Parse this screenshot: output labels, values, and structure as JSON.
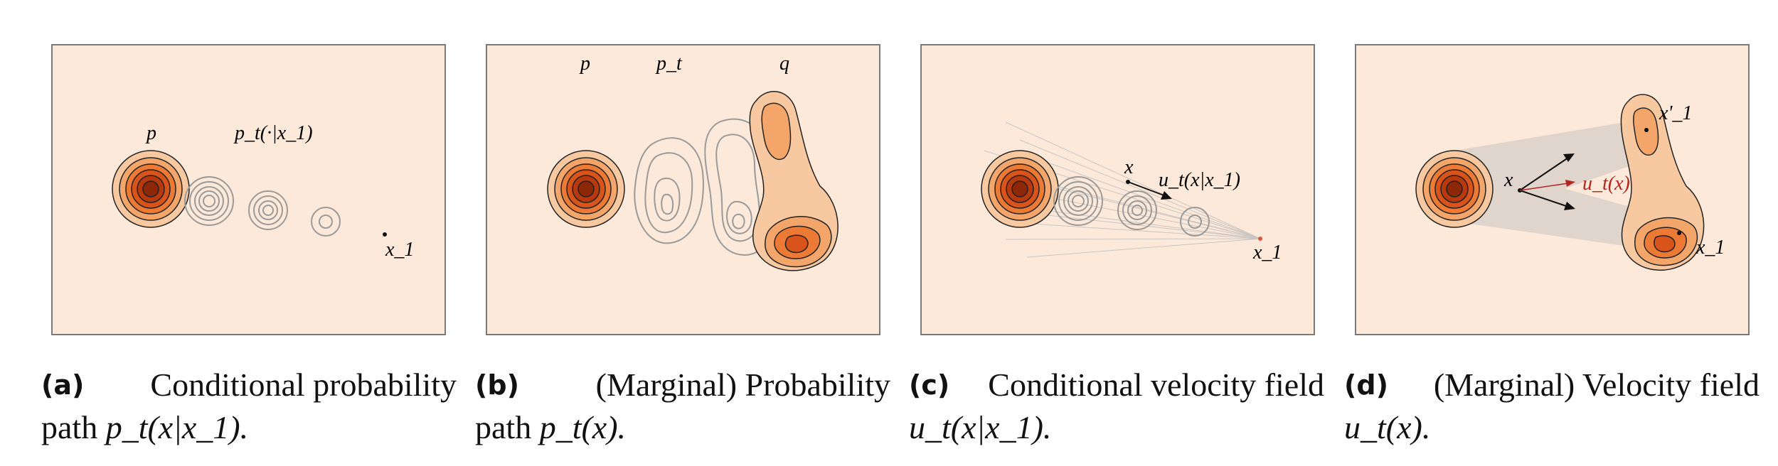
{
  "colors": {
    "background": "#fde9da",
    "frame": "#7a7a7a",
    "contour_fill_levels": [
      "#f8c9a0",
      "#f4a66a",
      "#ec7a35",
      "#d8541a",
      "#b8390e",
      "#8c2707"
    ],
    "grey_contour": "#9a9a9a",
    "red_arrow": "#b2271f",
    "shade": "#bdbdbd"
  },
  "panels": [
    {
      "id": "a",
      "caption_label": "(a)",
      "caption_line1": "Conditional probability",
      "caption_line2_text": "path",
      "caption_line2_math": "p_t(x|x_1).",
      "labels": {
        "p": "p",
        "pt": "p_t(·|x_1)",
        "x1": "x_1"
      }
    },
    {
      "id": "b",
      "caption_label": "(b)",
      "caption_line1": "(Marginal) Probability",
      "caption_line2_text": "path",
      "caption_line2_math": "p_t(x).",
      "labels": {
        "p": "p",
        "pt": "p_t",
        "q": "q"
      }
    },
    {
      "id": "c",
      "caption_label": "(c)",
      "caption_line1": "Conditional velocity field",
      "caption_line2_text": "",
      "caption_line2_math": "u_t(x|x_1).",
      "labels": {
        "x": "x",
        "ut": "u_t(x|x_1)",
        "x1": "x_1"
      }
    },
    {
      "id": "d",
      "caption_label": "(d)",
      "caption_line1": "(Marginal) Velocity field",
      "caption_line2_text": "",
      "caption_line2_math": "u_t(x).",
      "labels": {
        "x": "x",
        "ut": "u_t(x)",
        "x1p": "x'_1",
        "x1": "x_1"
      }
    }
  ]
}
